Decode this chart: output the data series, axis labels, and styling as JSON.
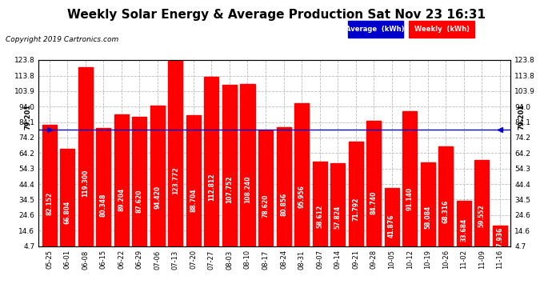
{
  "title": "Weekly Solar Energy & Average Production Sat Nov 23 16:31",
  "copyright": "Copyright 2019 Cartronics.com",
  "categories": [
    "05-25",
    "06-01",
    "06-08",
    "06-15",
    "06-22",
    "06-29",
    "07-06",
    "07-13",
    "07-20",
    "07-27",
    "08-03",
    "08-10",
    "08-17",
    "08-24",
    "08-31",
    "09-07",
    "09-14",
    "09-21",
    "09-28",
    "10-05",
    "10-12",
    "10-19",
    "10-26",
    "11-02",
    "11-09",
    "11-16"
  ],
  "values": [
    82.152,
    66.804,
    119.3,
    80.348,
    89.204,
    87.62,
    94.42,
    123.772,
    88.704,
    112.812,
    107.752,
    108.24,
    78.62,
    80.856,
    95.956,
    58.612,
    57.824,
    71.792,
    84.74,
    41.876,
    91.14,
    58.084,
    68.316,
    33.684,
    59.552,
    17.936
  ],
  "average": 79.201,
  "bar_color": "#FF0000",
  "avg_line_color": "#0000CC",
  "background_color": "#FFFFFF",
  "plot_bg_color": "#FFFFFF",
  "grid_color": "#BBBBBB",
  "title_color": "#000000",
  "bar_label_color": "#FFFFFF",
  "legend_avg_bg": "#0000CC",
  "legend_weekly_bg": "#FF0000",
  "ylim_min": 4.7,
  "ylim_max": 123.8,
  "yticks": [
    4.7,
    14.6,
    24.6,
    34.5,
    44.4,
    54.3,
    64.2,
    74.2,
    84.1,
    94.0,
    103.9,
    113.8,
    123.8
  ],
  "avg_label": "79.201",
  "title_fontsize": 11,
  "copyright_fontsize": 6.5,
  "bar_label_fontsize": 5.5,
  "xtick_fontsize": 6,
  "ytick_fontsize": 6.5
}
